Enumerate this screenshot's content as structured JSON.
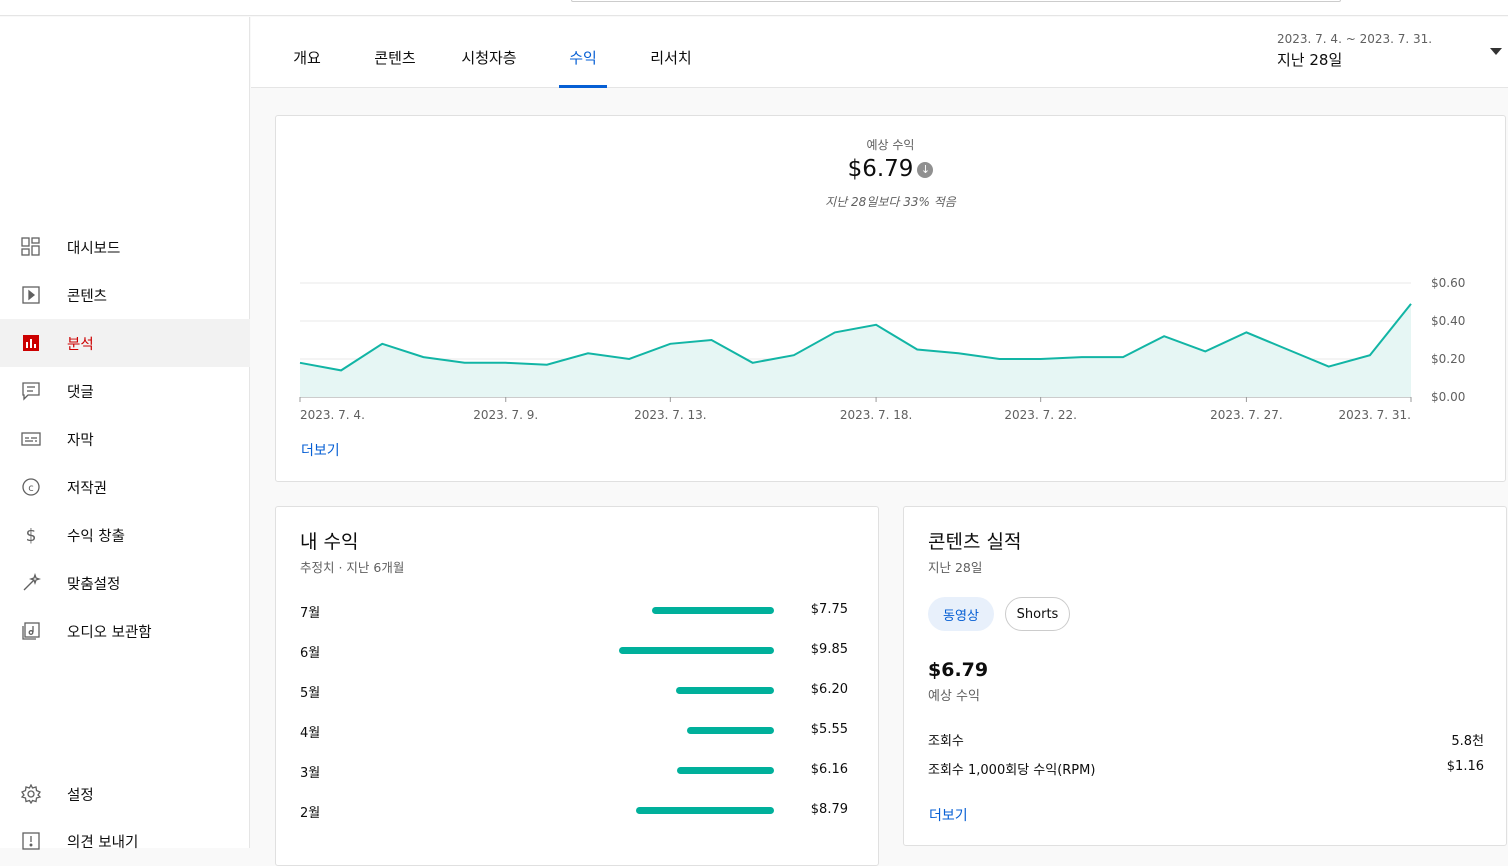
{
  "sidebar": {
    "items": [
      {
        "label": "대시보드",
        "icon": "dashboard-icon"
      },
      {
        "label": "콘텐츠",
        "icon": "content-icon"
      },
      {
        "label": "분석",
        "icon": "analytics-icon",
        "active": true
      },
      {
        "label": "댓글",
        "icon": "comments-icon"
      },
      {
        "label": "자막",
        "icon": "subtitles-icon"
      },
      {
        "label": "저작권",
        "icon": "copyright-icon"
      },
      {
        "label": "수익 창출",
        "icon": "monetization-icon"
      },
      {
        "label": "맞춤설정",
        "icon": "customization-icon"
      },
      {
        "label": "오디오 보관함",
        "icon": "audio-library-icon"
      }
    ],
    "bottom": [
      {
        "label": "설정",
        "icon": "settings-icon"
      },
      {
        "label": "의견 보내기",
        "icon": "feedback-icon"
      }
    ]
  },
  "tabs": [
    {
      "label": "개요"
    },
    {
      "label": "콘텐츠"
    },
    {
      "label": "시청자층"
    },
    {
      "label": "수익",
      "active": true
    },
    {
      "label": "리서치"
    }
  ],
  "date_range": {
    "dates": "2023. 7. 4. ~ 2023. 7. 31.",
    "period": "지난 28일"
  },
  "revenue_card": {
    "label": "예상 수익",
    "value": "$6.79",
    "compare": "지난 28일보다 33% 적음",
    "more": "더보기"
  },
  "chart_data": {
    "type": "area",
    "x_labels": [
      "2023. 7. 4.",
      "2023. 7. 9.",
      "2023. 7. 13.",
      "2023. 7. 18.",
      "2023. 7. 22.",
      "2023. 7. 27.",
      "2023. 7. 31."
    ],
    "y_ticks": [
      "$0.60",
      "$0.40",
      "$0.20",
      "$0.00"
    ],
    "ylim": [
      0,
      0.6
    ],
    "series": [
      {
        "values": [
          0.18,
          0.14,
          0.28,
          0.21,
          0.18,
          0.18,
          0.17,
          0.23,
          0.2,
          0.28,
          0.3,
          0.18,
          0.22,
          0.34,
          0.38,
          0.25,
          0.23,
          0.2,
          0.2,
          0.21,
          0.21,
          0.32,
          0.24,
          0.34,
          0.25,
          0.16,
          0.22,
          0.49
        ]
      }
    ],
    "color": "#12b5a5",
    "fill": "#e6f6f4",
    "grid": true
  },
  "my_revenue": {
    "title": "내 수익",
    "subtitle": "추정치 · 지난 6개월",
    "months": [
      {
        "month": "7월",
        "amount": "$7.75",
        "value": 7.75
      },
      {
        "month": "6월",
        "amount": "$9.85",
        "value": 9.85
      },
      {
        "month": "5월",
        "amount": "$6.20",
        "value": 6.2
      },
      {
        "month": "4월",
        "amount": "$5.55",
        "value": 5.55
      },
      {
        "month": "3월",
        "amount": "$6.16",
        "value": 6.16
      },
      {
        "month": "2월",
        "amount": "$8.79",
        "value": 8.79
      }
    ]
  },
  "content_perf": {
    "title": "콘텐츠 실적",
    "subtitle": "지난 28일",
    "chips": [
      {
        "label": "동영상",
        "selected": true
      },
      {
        "label": "Shorts",
        "selected": false
      }
    ],
    "value": "$6.79",
    "value_label": "예상 수익",
    "metrics": [
      {
        "key": "조회수",
        "value": "5.8천"
      },
      {
        "key": "조회수 1,000회당 수익(RPM)",
        "value": "$1.16"
      }
    ],
    "more": "더보기"
  }
}
